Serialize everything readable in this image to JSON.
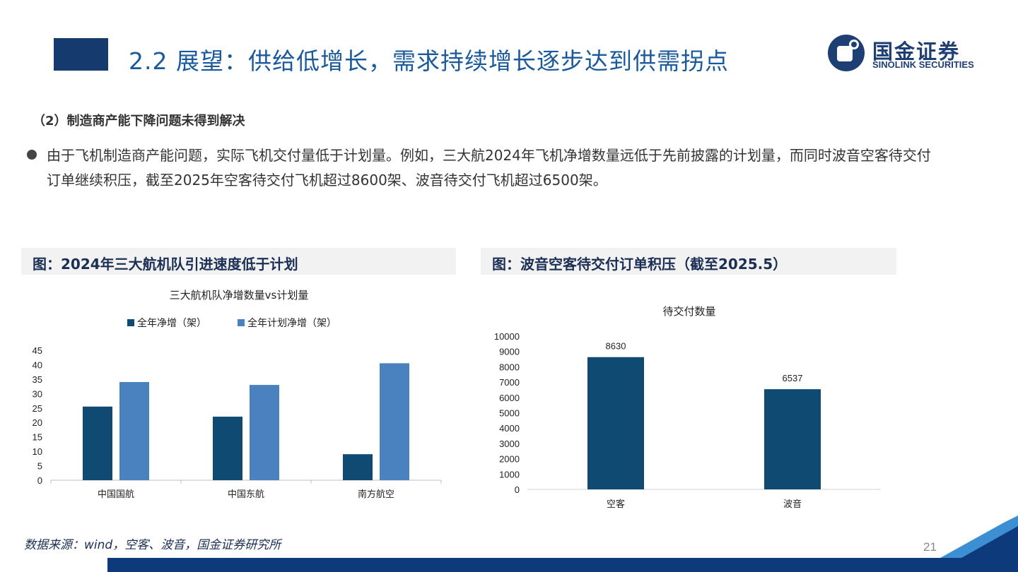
{
  "header": {
    "title": "2.2 展望：供给低增长，需求持续增长逐步达到供需拐点",
    "logo_cn": "国金证券",
    "logo_en": "SINOLINK SECURITIES"
  },
  "section": {
    "subheading": "（2）制造商产能下降问题未得到解决",
    "bullet_text": "由于飞机制造商产能问题，实际飞机交付量低于计划量。例如，三大航2024年飞机净增数量远低于先前披露的计划量，而同时波音空客待交付订单继续积压，截至2025年空客待交付飞机超过8600架、波音待交付飞机超过6500架。"
  },
  "figures": {
    "left_caption": "图：2024年三大航机队引进速度低于计划",
    "right_caption": "图：波音空客待交付订单积压（截至2025.5）"
  },
  "chart_data": [
    {
      "type": "bar",
      "title": "三大航机队净增数量vs计划量",
      "categories": [
        "中国国航",
        "中国东航",
        "南方航空"
      ],
      "series": [
        {
          "name": "全年净增（架）",
          "values": [
            25.5,
            22,
            9
          ],
          "color": "#0f4a73"
        },
        {
          "name": "全年计划净增（架）",
          "values": [
            34,
            33,
            40.5
          ],
          "color": "#4a82c0"
        }
      ],
      "ylim": [
        0,
        45
      ],
      "yticks": [
        0,
        5,
        10,
        15,
        20,
        25,
        30,
        35,
        40,
        45
      ],
      "legend": "top"
    },
    {
      "type": "bar",
      "title": "待交付数量",
      "categories": [
        "空客",
        "波音"
      ],
      "values": [
        8630,
        6537
      ],
      "data_labels": [
        "8630",
        "6537"
      ],
      "color": "#0f4a73",
      "ylim": [
        0,
        10000
      ],
      "yticks": [
        0,
        1000,
        2000,
        3000,
        4000,
        5000,
        6000,
        7000,
        8000,
        9000,
        10000
      ]
    }
  ],
  "footer": {
    "source": "数据来源：wind，空客、波音，国金证券研究所",
    "page_number": "21"
  }
}
